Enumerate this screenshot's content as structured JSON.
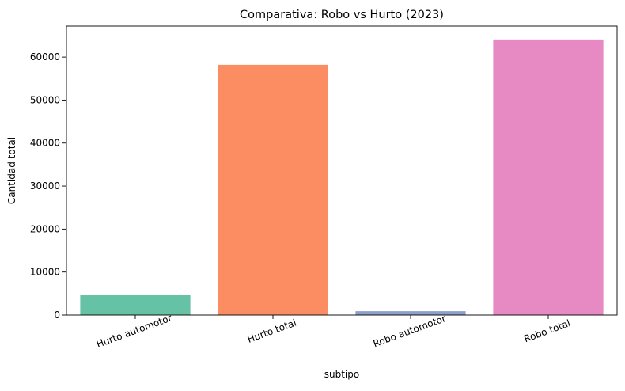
{
  "chart_data": {
    "type": "bar",
    "title": "Comparativa: Robo vs Hurto (2023)",
    "xlabel": "subtipo",
    "ylabel": "Cantidad total",
    "categories": [
      "Hurto automotor",
      "Hurto total",
      "Robo automotor",
      "Robo total"
    ],
    "values": [
      4600,
      58200,
      900,
      64100
    ],
    "colors": [
      "#66c2a5",
      "#fc8d62",
      "#8da0cb",
      "#e78ac3"
    ],
    "ylim": [
      0,
      67200
    ],
    "yticks": [
      0,
      10000,
      20000,
      30000,
      40000,
      50000,
      60000
    ],
    "ytick_labels": [
      "0",
      "10000",
      "20000",
      "30000",
      "40000",
      "50000",
      "60000"
    ],
    "grid": false,
    "legend": "none"
  }
}
